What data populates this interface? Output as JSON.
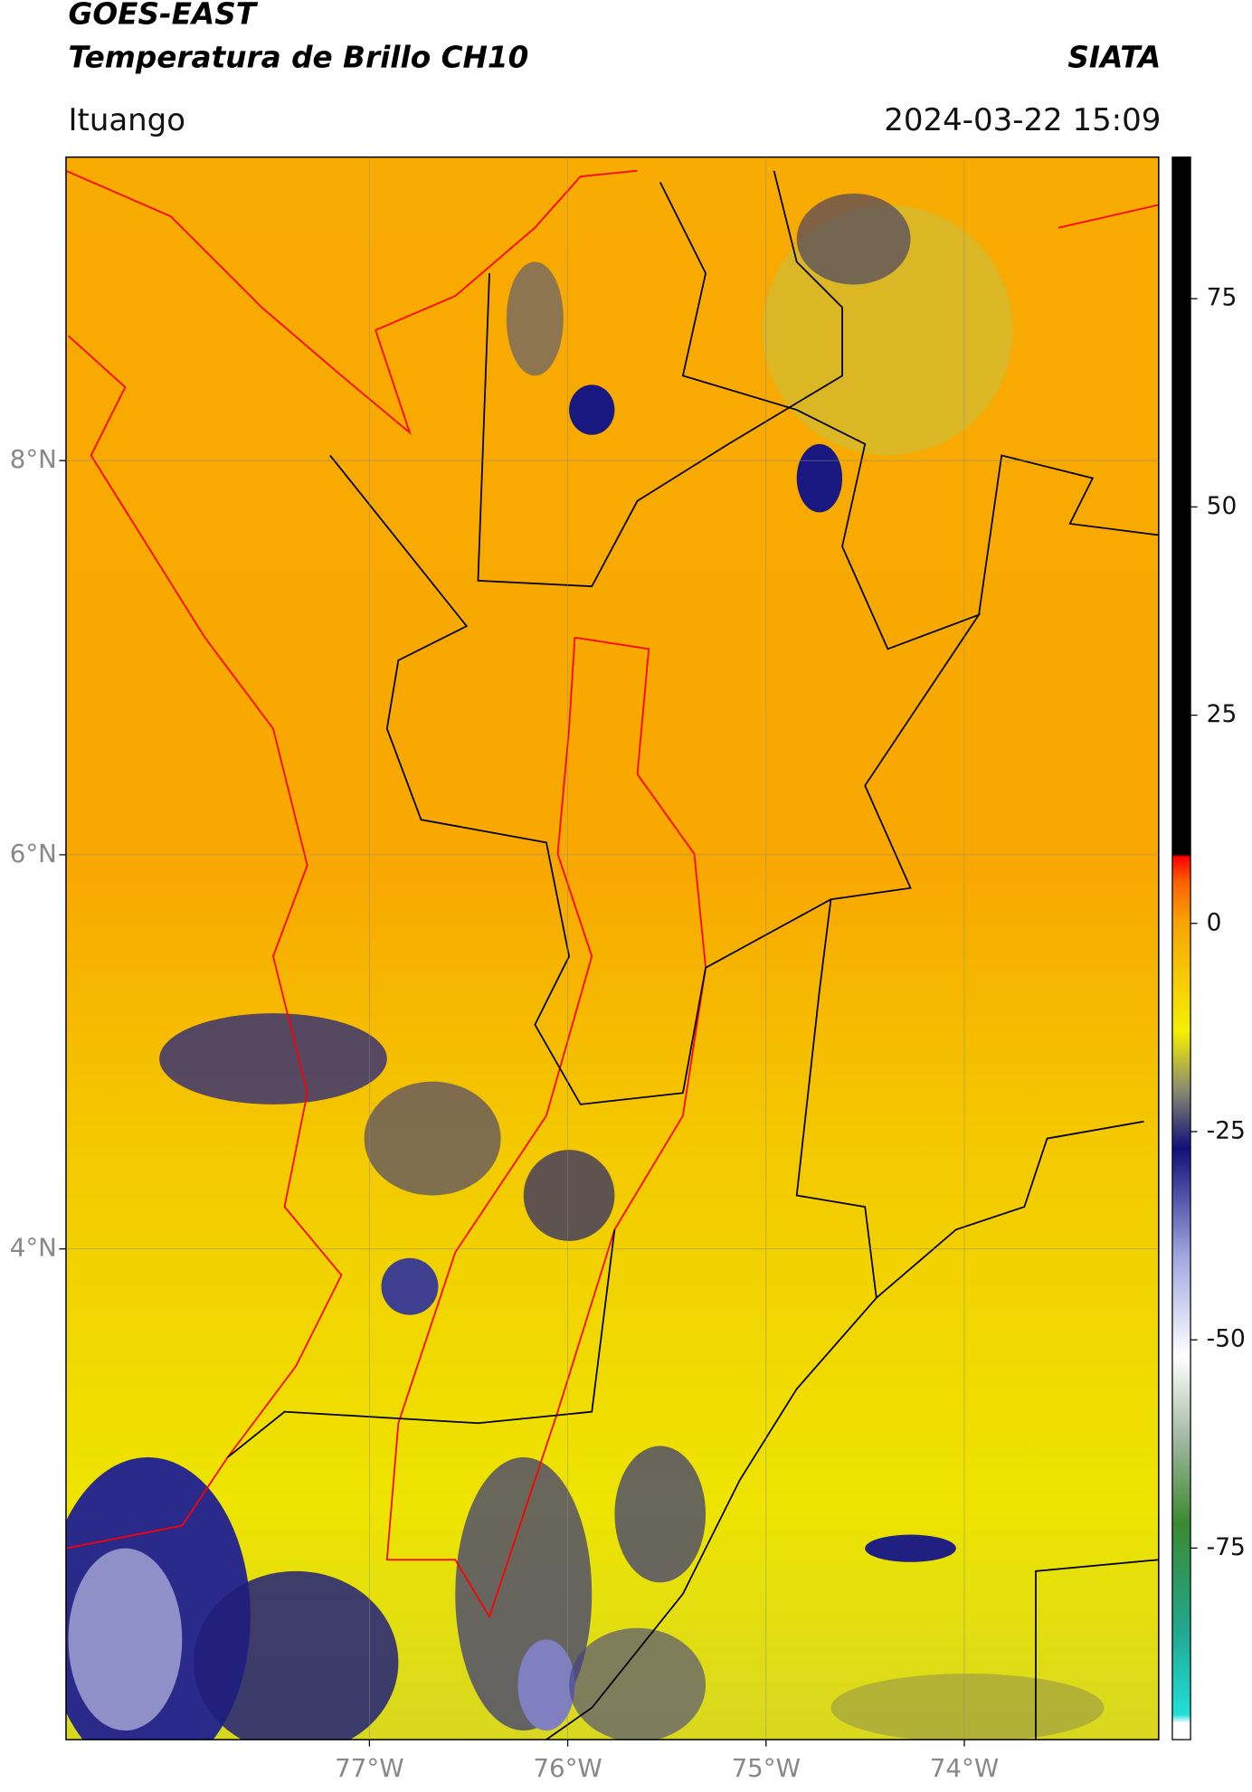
{
  "header": {
    "title": "GOES-EAST",
    "subtitle": "Temperatura de Brillo CH10",
    "brand": "SIATA",
    "location": "Ituango",
    "datetime": "2024-03-22 15:09"
  },
  "map": {
    "xlim": [
      -78.53,
      -73.02
    ],
    "ylim": [
      1.51,
      9.54
    ],
    "xticks": [
      {
        "value": -77,
        "label": "77°W"
      },
      {
        "value": -76,
        "label": "76°W"
      },
      {
        "value": -75,
        "label": "75°W"
      },
      {
        "value": -74,
        "label": "74°W"
      }
    ],
    "yticks": [
      {
        "value": 4,
        "label": "4°N"
      },
      {
        "value": 6,
        "label": "6°N"
      },
      {
        "value": 8,
        "label": "8°N"
      }
    ],
    "grid": true
  },
  "colorbar": {
    "clim": [
      -98,
      92
    ],
    "ticks": [
      -75,
      -50,
      -25,
      0,
      25,
      50,
      75
    ],
    "colormap": [
      {
        "value": -98,
        "color": "#ffffff"
      },
      {
        "value": -96,
        "color": "#ffffff"
      },
      {
        "value": -95,
        "color": "#20e0d8"
      },
      {
        "value": -85,
        "color": "#20a890"
      },
      {
        "value": -72,
        "color": "#3a8a30"
      },
      {
        "value": -62,
        "color": "#a0b8a0"
      },
      {
        "value": -52,
        "color": "#ffffff"
      },
      {
        "value": -40,
        "color": "#a0a8e0"
      },
      {
        "value": -27,
        "color": "#10107a"
      },
      {
        "value": -20,
        "color": "#8a8a70"
      },
      {
        "value": -13,
        "color": "#f5f000"
      },
      {
        "value": 0,
        "color": "#f7a500"
      },
      {
        "value": 5,
        "color": "#ff6000"
      },
      {
        "value": 8,
        "color": "#ff0000"
      },
      {
        "value": 8.3,
        "color": "#000000"
      },
      {
        "value": 92,
        "color": "#000000"
      }
    ]
  }
}
